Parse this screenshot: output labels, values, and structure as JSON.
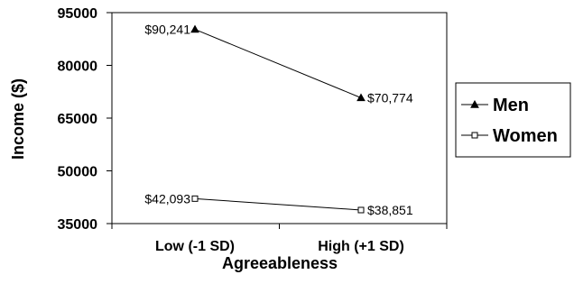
{
  "chart_data": {
    "type": "line",
    "title": "",
    "xlabel": "Agreeableness",
    "ylabel": "Income ($)",
    "categories": [
      "Low (-1 SD)",
      "High (+1 SD)"
    ],
    "ylim": [
      35000,
      95000
    ],
    "yticks": [
      35000,
      50000,
      65000,
      80000,
      95000
    ],
    "ytick_labels": [
      "35000",
      "50000",
      "65000",
      "80000",
      "95000"
    ],
    "grid": false,
    "legend_position": "right",
    "series": [
      {
        "name": "Men",
        "values": [
          90241,
          70774
        ],
        "labels": [
          "$90,241",
          "$70,774"
        ],
        "marker": "filled-triangle",
        "color": "#000000"
      },
      {
        "name": "Women",
        "values": [
          42093,
          38851
        ],
        "labels": [
          "$42,093",
          "$38,851"
        ],
        "marker": "hollow-square",
        "color": "#000000"
      }
    ]
  }
}
